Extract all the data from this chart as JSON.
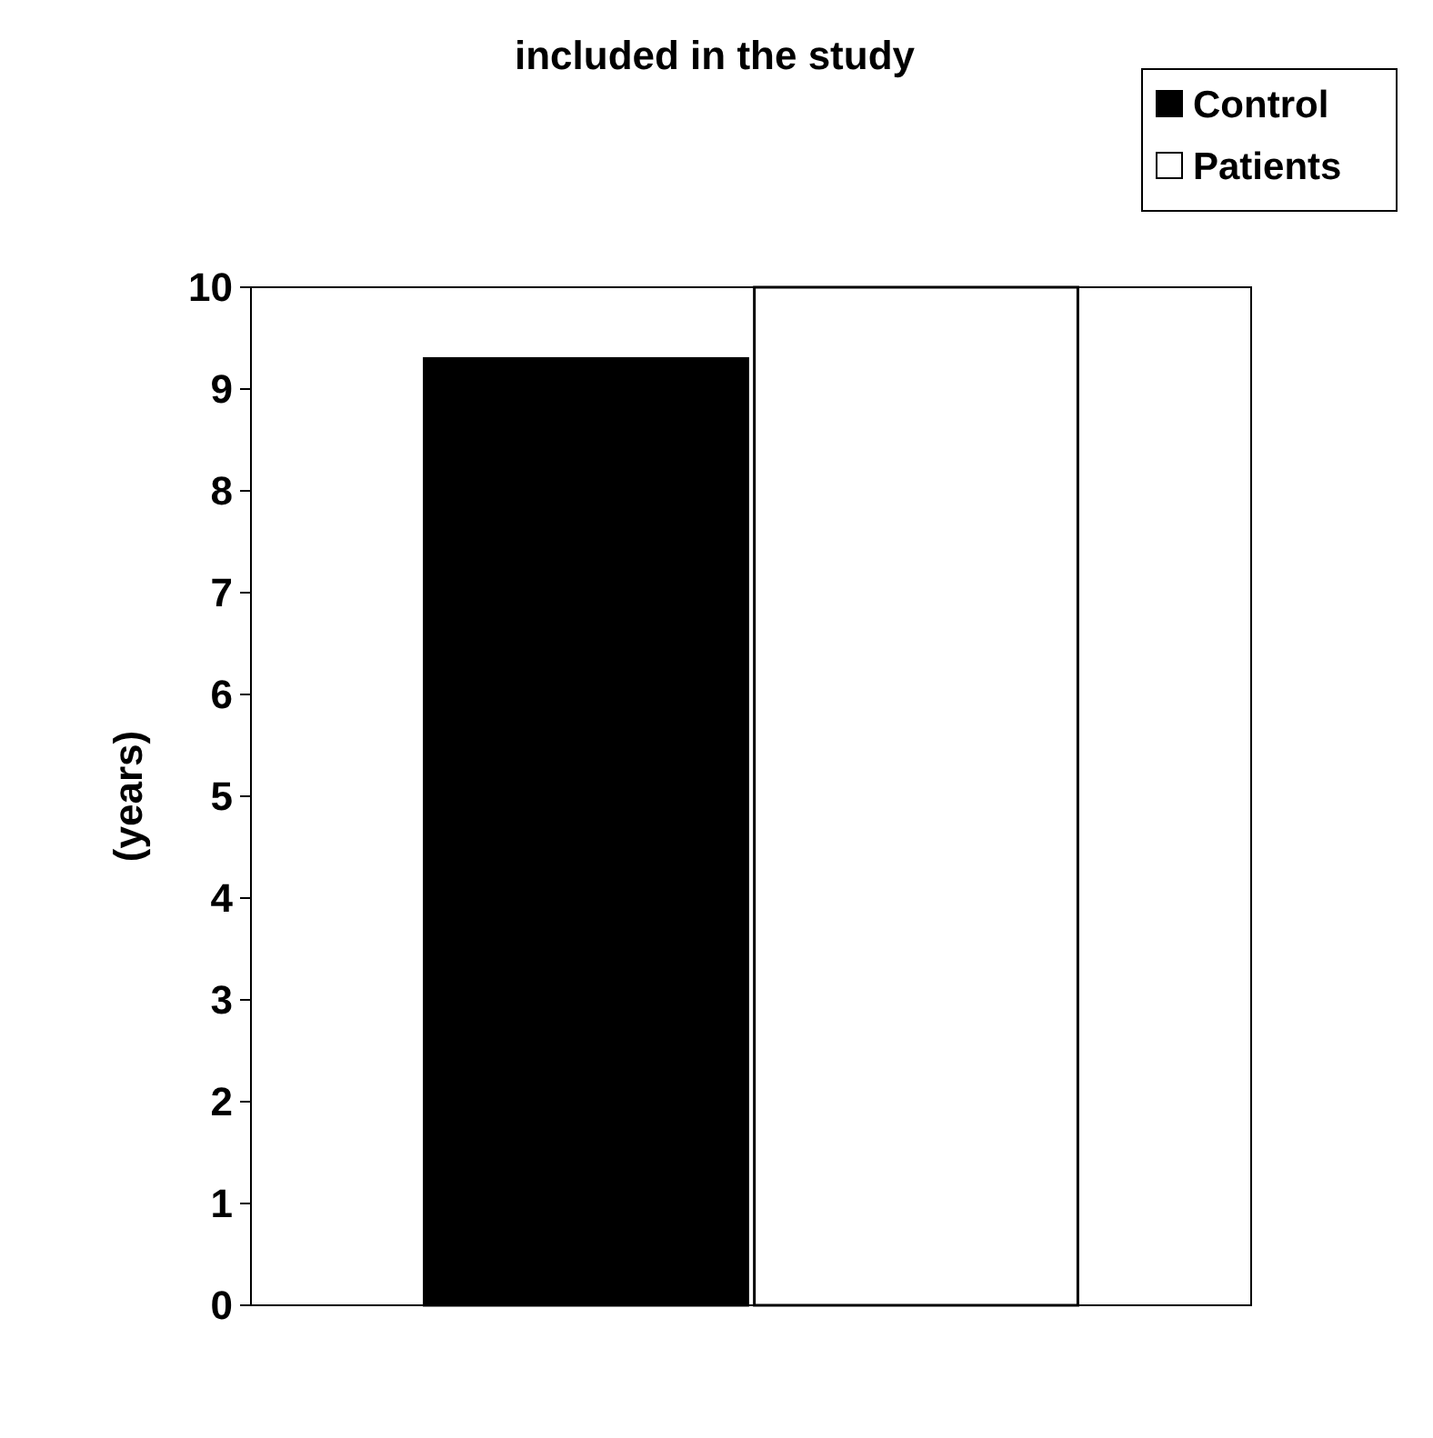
{
  "chart_data": {
    "type": "bar",
    "title": "included in the study",
    "ylabel": "(years)",
    "categories": [
      null
    ],
    "series": [
      {
        "name": "Control",
        "color": "#000000",
        "values": [
          9.3
        ]
      },
      {
        "name": "Patients",
        "color": "#ffffff",
        "values": [
          10
        ]
      }
    ],
    "ylim": [
      0,
      10
    ],
    "yticks": [
      0,
      1,
      2,
      3,
      4,
      5,
      6,
      7,
      8,
      9,
      10
    ],
    "grid": false,
    "legend": "top right"
  }
}
